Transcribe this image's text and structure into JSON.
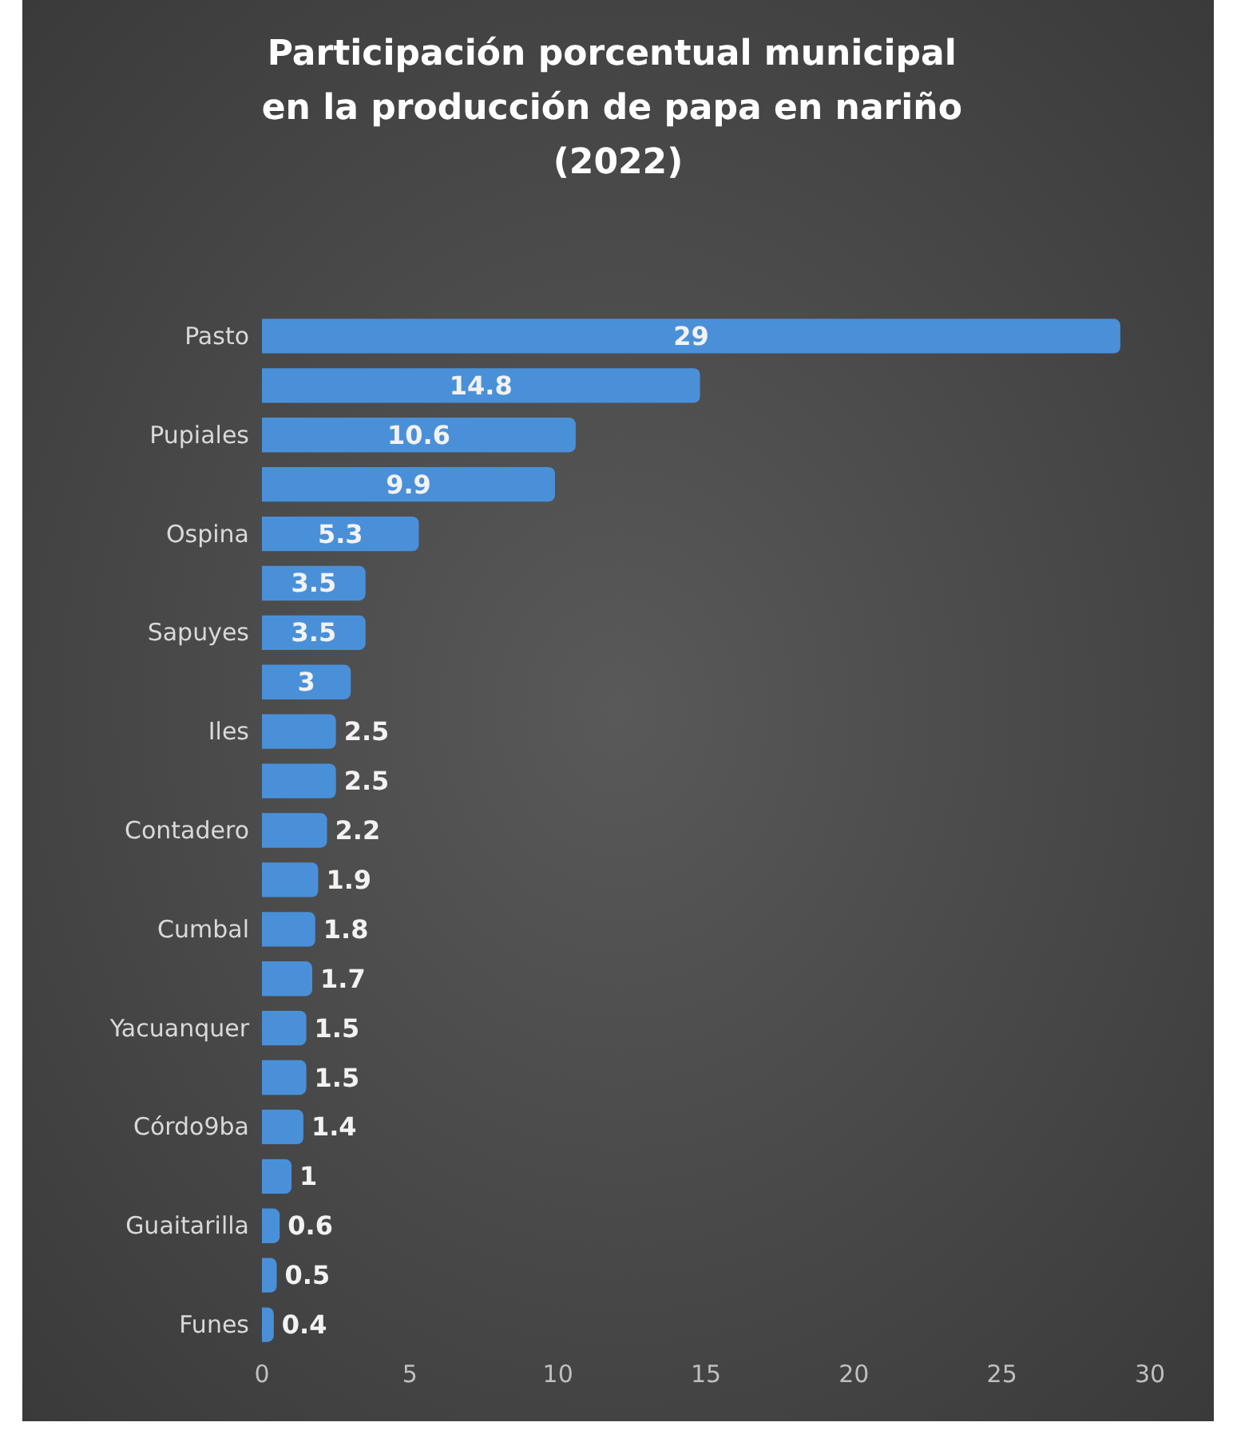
{
  "chart_data": {
    "type": "bar",
    "orientation": "horizontal",
    "title": "Participación porcentual municipal en la producción de papa en nariño (2022)",
    "categories": [
      "Pasto",
      null,
      "Pupiales",
      null,
      "Ospina",
      null,
      "Sapuyes",
      null,
      "Iles",
      null,
      "Contadero",
      null,
      "Cumbal",
      null,
      "Yacuanquer",
      null,
      "Córdo9ba",
      null,
      "Guaitarilla",
      null,
      "Funes"
    ],
    "values": [
      29,
      14.8,
      10.6,
      9.9,
      5.3,
      3.5,
      3.5,
      3,
      2.5,
      2.5,
      2.2,
      1.9,
      1.8,
      1.7,
      1.5,
      1.5,
      1.4,
      1,
      0.6,
      0.5,
      0.4
    ],
    "color": "#4a90d9",
    "xlim": [
      0,
      30
    ],
    "xticks": [
      0,
      5,
      10,
      15,
      20,
      25,
      30
    ],
    "grid": false,
    "data_labels": true
  }
}
